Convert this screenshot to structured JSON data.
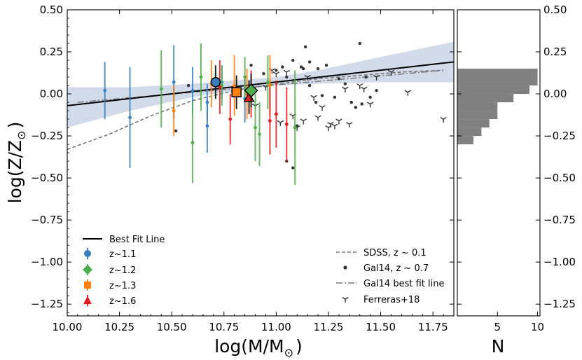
{
  "chart_data": [
    {
      "type": "scatter",
      "title": "",
      "xlabel": "log(M/M",
      "xlabel_sub": "⊙",
      "xlabel_close": ")",
      "ylabel": "log(Z/Z",
      "ylabel_sub": "⊙",
      "ylabel_close": ")",
      "xlim": [
        10.0,
        11.85
      ],
      "ylim": [
        -1.32,
        0.5
      ],
      "xticks": [
        "10.00",
        "10.25",
        "10.50",
        "10.75",
        "11.00",
        "11.25",
        "11.50",
        "11.75"
      ],
      "xtick_values": [
        10.0,
        10.25,
        10.5,
        10.75,
        11.0,
        11.25,
        11.5,
        11.75
      ],
      "yticks": [
        "0.50",
        "0.25",
        "0.00",
        "−0.25",
        "−0.50",
        "−0.75",
        "−1.00",
        "−1.25"
      ],
      "ytick_values": [
        0.5,
        0.25,
        0.0,
        -0.25,
        -0.5,
        -0.75,
        -1.0,
        -1.25
      ],
      "colors": {
        "z11": "#3a7ebf",
        "z12": "#4daf4a",
        "z13": "#ff7f0e",
        "z16": "#e41a1c",
        "fit": "#000000",
        "band": "#b8c7df",
        "sdss": "#777777",
        "gal14": "#333333"
      },
      "best_fit": {
        "x": [
          10.0,
          11.85
        ],
        "y": [
          -0.07,
          0.19
        ]
      },
      "confidence_band": {
        "x": [
          10.0,
          10.3,
          10.6,
          10.8,
          11.0,
          11.2,
          11.5,
          11.85
        ],
        "upper": [
          0.04,
          0.04,
          0.06,
          0.08,
          0.1,
          0.14,
          0.22,
          0.31
        ],
        "lower": [
          -0.2,
          -0.1,
          -0.02,
          0.02,
          0.05,
          0.06,
          0.07,
          0.07
        ]
      },
      "sdss": {
        "x": [
          10.0,
          10.2,
          10.4,
          10.6,
          10.8,
          11.0,
          11.2,
          11.4,
          11.6,
          11.8
        ],
        "y": [
          -0.33,
          -0.24,
          -0.13,
          -0.04,
          0.02,
          0.06,
          0.09,
          0.11,
          0.13,
          0.14
        ]
      },
      "gal14_fit": {
        "x": [
          10.05,
          11.8
        ],
        "y": [
          -0.05,
          0.14
        ]
      },
      "series": [
        {
          "name": "z~1.1",
          "key": "z11",
          "points": [
            {
              "x": 10.18,
              "y": 0.02,
              "err": 0.17
            },
            {
              "x": 10.3,
              "y": -0.14,
              "err": 0.3
            },
            {
              "x": 10.51,
              "y": 0.07,
              "err": 0.22
            },
            {
              "x": 10.6,
              "y": 0.02,
              "err": 0.14
            },
            {
              "x": 10.67,
              "y": -0.19,
              "err": 0.16
            },
            {
              "x": 10.67,
              "y": -0.05,
              "err": 0.11
            },
            {
              "x": 10.74,
              "y": 0.07,
              "err": 0.1
            },
            {
              "x": 10.85,
              "y": -0.03,
              "err": 0.14
            }
          ],
          "mean": {
            "x": 10.71,
            "y": 0.07
          }
        },
        {
          "name": "z~1.2",
          "key": "z12",
          "points": [
            {
              "x": 10.45,
              "y": 0.03,
              "err": 0.23
            },
            {
              "x": 10.6,
              "y": -0.29,
              "err": 0.24
            },
            {
              "x": 10.64,
              "y": 0.1,
              "err": 0.2
            },
            {
              "x": 10.74,
              "y": 0.05,
              "err": 0.12
            },
            {
              "x": 10.85,
              "y": 0.1,
              "err": 0.12
            },
            {
              "x": 10.9,
              "y": -0.2,
              "err": 0.2
            },
            {
              "x": 10.92,
              "y": -0.24,
              "err": 0.19
            },
            {
              "x": 10.96,
              "y": 0.07,
              "err": 0.16
            },
            {
              "x": 11.09,
              "y": -0.2,
              "err": 0.34
            }
          ],
          "mean": {
            "x": 10.88,
            "y": 0.02
          }
        },
        {
          "name": "z~1.3",
          "key": "z13",
          "points": [
            {
              "x": 10.51,
              "y": -0.1,
              "err": 0.15
            },
            {
              "x": 10.69,
              "y": 0.06,
              "err": 0.14
            },
            {
              "x": 10.8,
              "y": 0.05,
              "err": 0.18
            },
            {
              "x": 10.86,
              "y": 0.0,
              "err": 0.15
            },
            {
              "x": 10.97,
              "y": 0.05,
              "err": 0.18
            }
          ],
          "mean": {
            "x": 10.81,
            "y": 0.01
          }
        },
        {
          "name": "z~1.6",
          "key": "z16",
          "points": [
            {
              "x": 10.73,
              "y": 0.04,
              "err": 0.16
            },
            {
              "x": 10.78,
              "y": -0.15,
              "err": 0.15
            },
            {
              "x": 10.88,
              "y": 0.0,
              "err": 0.14
            },
            {
              "x": 10.97,
              "y": -0.16,
              "err": 0.2
            },
            {
              "x": 11.0,
              "y": -0.12,
              "err": 0.2
            },
            {
              "x": 11.05,
              "y": -0.18,
              "err": 0.22
            }
          ],
          "mean": {
            "x": 10.87,
            "y": -0.02
          }
        }
      ],
      "gal14": {
        "x": [
          10.52,
          10.58,
          10.88,
          10.94,
          11.0,
          11.03,
          11.05,
          11.08,
          11.12,
          11.13,
          11.14,
          11.16,
          11.16,
          11.19,
          11.2,
          11.22,
          11.24,
          11.28,
          11.3,
          11.33,
          11.36,
          11.38,
          11.4,
          11.41,
          11.43,
          11.45,
          11.48,
          11.05,
          11.08,
          11.1
        ],
        "y": [
          -0.22,
          0.05,
          0.17,
          0.12,
          0.14,
          0.16,
          0.1,
          0.2,
          0.16,
          0.15,
          0.28,
          0.19,
          0.05,
          -0.05,
          0.15,
          -0.01,
          0.17,
          -0.02,
          0.09,
          0.06,
          -0.05,
          -0.08,
          0.3,
          -0.06,
          0.1,
          -0.02,
          0.02,
          -0.4,
          -0.44,
          -0.19
        ]
      },
      "ferreras": {
        "x": [
          10.98,
          11.0,
          11.02,
          11.05,
          11.08,
          11.1,
          11.13,
          11.15,
          11.2,
          11.22,
          11.25,
          11.26,
          11.28,
          11.3,
          11.33,
          11.35,
          11.4,
          11.45,
          11.48,
          11.55,
          11.63,
          11.8,
          10.9,
          10.95,
          11.18,
          11.42
        ],
        "y": [
          0.14,
          0.12,
          -0.17,
          0.13,
          -0.13,
          -0.2,
          -0.16,
          0.1,
          -0.14,
          -0.08,
          -0.2,
          -0.18,
          -0.19,
          -0.16,
          0.03,
          -0.18,
          0.05,
          -0.06,
          0.1,
          0.13,
          0.01,
          -0.15,
          -0.07,
          0.04,
          -0.02,
          0.03
        ]
      },
      "legend_left": {
        "fit": "Best Fit Line",
        "z11": "z~1.1",
        "z12": "z~1.2",
        "z13": "z~1.3",
        "z16": "z~1.6"
      },
      "legend_right": {
        "sdss_prefix": "SDSS, z",
        "sdss_suffix": "0.1",
        "gal14_prefix": "Gal14, z",
        "gal14_suffix": "0.7",
        "tilde": "∼",
        "gal14_fit": "Gal14 best fit line",
        "ferreras": "Ferreras+18"
      }
    },
    {
      "type": "bar",
      "orientation": "horizontal",
      "xlabel": "N",
      "xticks": [
        "5",
        "10"
      ],
      "xtick_values": [
        5,
        10
      ],
      "xlim": [
        0,
        10.3
      ],
      "bins": [
        {
          "y0": -0.3,
          "y1": -0.25,
          "count": 2
        },
        {
          "y0": -0.25,
          "y1": -0.2,
          "count": 3
        },
        {
          "y0": -0.2,
          "y1": -0.15,
          "count": 4
        },
        {
          "y0": -0.15,
          "y1": -0.1,
          "count": 5
        },
        {
          "y0": -0.1,
          "y1": -0.05,
          "count": 5
        },
        {
          "y0": -0.05,
          "y1": 0.0,
          "count": 7
        },
        {
          "y0": 0.0,
          "y1": 0.05,
          "count": 9
        },
        {
          "y0": 0.05,
          "y1": 0.1,
          "count": 10
        },
        {
          "y0": 0.1,
          "y1": 0.15,
          "count": 10
        }
      ],
      "bar_color": "#808080"
    }
  ]
}
